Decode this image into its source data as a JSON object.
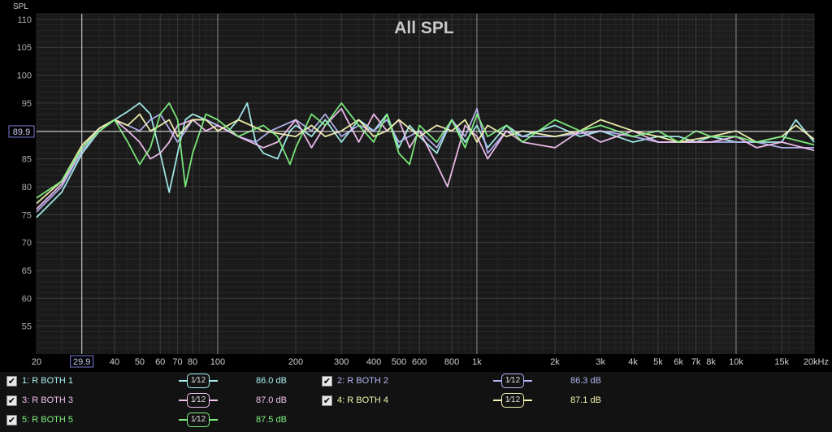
{
  "chart_data": {
    "type": "line",
    "title": "All SPL",
    "ylabel": "SPL",
    "xlabel": "",
    "x_scale": "log",
    "xlim": [
      20,
      20000
    ],
    "ylim": [
      50,
      111
    ],
    "y_ticks": [
      "110",
      "105",
      "100",
      "95",
      "90",
      "85",
      "80",
      "75",
      "70",
      "65",
      "60",
      "55"
    ],
    "x_ticks": [
      "20",
      "40",
      "50",
      "60",
      "70",
      "80",
      "100",
      "200",
      "300",
      "400",
      "500",
      "600",
      "800",
      "1k",
      "2k",
      "3k",
      "4k",
      "5k",
      "6k",
      "7k",
      "8k",
      "10k",
      "15k",
      "20kHz"
    ],
    "cursor": {
      "x_label": "29.9",
      "x": 29.9,
      "y_label": "89.9",
      "y": 89.9
    },
    "grid": true,
    "series": [
      {
        "name": "R BOTH 1",
        "color": "#a8f0f0",
        "points": [
          [
            20,
            74.5
          ],
          [
            25,
            79
          ],
          [
            30,
            86
          ],
          [
            35,
            90
          ],
          [
            40,
            92
          ],
          [
            45,
            93.5
          ],
          [
            50,
            95
          ],
          [
            55,
            93
          ],
          [
            60,
            86
          ],
          [
            65,
            79
          ],
          [
            70,
            86
          ],
          [
            75,
            92
          ],
          [
            80,
            93
          ],
          [
            90,
            92
          ],
          [
            100,
            91
          ],
          [
            110,
            90
          ],
          [
            120,
            92
          ],
          [
            130,
            95
          ],
          [
            140,
            88
          ],
          [
            150,
            86
          ],
          [
            170,
            85
          ],
          [
            190,
            90
          ],
          [
            200,
            91
          ],
          [
            230,
            89
          ],
          [
            260,
            92
          ],
          [
            300,
            88
          ],
          [
            350,
            92
          ],
          [
            400,
            90
          ],
          [
            450,
            93
          ],
          [
            500,
            87
          ],
          [
            550,
            91
          ],
          [
            600,
            89
          ],
          [
            700,
            86
          ],
          [
            800,
            92
          ],
          [
            900,
            88
          ],
          [
            1000,
            91
          ],
          [
            1100,
            87
          ],
          [
            1300,
            91
          ],
          [
            1500,
            89
          ],
          [
            2000,
            91
          ],
          [
            2500,
            89
          ],
          [
            3000,
            90
          ],
          [
            4000,
            88
          ],
          [
            5000,
            89
          ],
          [
            6000,
            89
          ],
          [
            7000,
            88
          ],
          [
            8000,
            89
          ],
          [
            10000,
            88
          ],
          [
            12000,
            88
          ],
          [
            15000,
            88
          ],
          [
            17000,
            92
          ],
          [
            20000,
            88
          ]
        ]
      },
      {
        "name": "R BOTH 2",
        "color": "#b4b4f4",
        "points": [
          [
            20,
            75.5
          ],
          [
            25,
            80
          ],
          [
            30,
            86.5
          ],
          [
            35,
            90
          ],
          [
            40,
            92
          ],
          [
            45,
            91
          ],
          [
            50,
            90
          ],
          [
            55,
            92
          ],
          [
            60,
            93
          ],
          [
            70,
            88
          ],
          [
            75,
            90
          ],
          [
            80,
            92
          ],
          [
            90,
            92
          ],
          [
            100,
            91
          ],
          [
            120,
            89
          ],
          [
            140,
            88
          ],
          [
            160,
            90
          ],
          [
            200,
            92
          ],
          [
            230,
            90
          ],
          [
            260,
            93
          ],
          [
            300,
            89
          ],
          [
            350,
            91
          ],
          [
            400,
            90
          ],
          [
            450,
            92
          ],
          [
            500,
            88
          ],
          [
            600,
            90
          ],
          [
            700,
            87
          ],
          [
            800,
            92
          ],
          [
            900,
            89
          ],
          [
            1000,
            94
          ],
          [
            1100,
            86
          ],
          [
            1300,
            90
          ],
          [
            1500,
            89
          ],
          [
            2000,
            89
          ],
          [
            3000,
            90
          ],
          [
            4000,
            89
          ],
          [
            5000,
            88
          ],
          [
            6000,
            88
          ],
          [
            8000,
            88
          ],
          [
            10000,
            88
          ],
          [
            12000,
            88
          ],
          [
            15000,
            87
          ],
          [
            20000,
            87
          ]
        ]
      },
      {
        "name": "R BOTH 3",
        "color": "#f4c0f0",
        "points": [
          [
            20,
            76
          ],
          [
            25,
            80.5
          ],
          [
            30,
            87
          ],
          [
            35,
            90.5
          ],
          [
            40,
            92
          ],
          [
            45,
            90
          ],
          [
            50,
            88
          ],
          [
            55,
            85
          ],
          [
            60,
            86
          ],
          [
            65,
            88
          ],
          [
            70,
            91
          ],
          [
            80,
            92
          ],
          [
            90,
            90
          ],
          [
            100,
            91
          ],
          [
            120,
            89
          ],
          [
            150,
            87
          ],
          [
            170,
            88
          ],
          [
            200,
            92
          ],
          [
            230,
            87
          ],
          [
            260,
            91
          ],
          [
            300,
            94
          ],
          [
            350,
            88
          ],
          [
            400,
            93
          ],
          [
            450,
            90
          ],
          [
            500,
            92
          ],
          [
            550,
            87
          ],
          [
            600,
            90
          ],
          [
            700,
            84
          ],
          [
            770,
            80
          ],
          [
            850,
            87
          ],
          [
            900,
            91
          ],
          [
            1000,
            89
          ],
          [
            1100,
            85
          ],
          [
            1300,
            90
          ],
          [
            1500,
            88
          ],
          [
            2000,
            87
          ],
          [
            2500,
            90
          ],
          [
            3000,
            88
          ],
          [
            4000,
            90
          ],
          [
            5000,
            88
          ],
          [
            6000,
            88
          ],
          [
            8000,
            88
          ],
          [
            10000,
            89
          ],
          [
            12000,
            87
          ],
          [
            15000,
            88
          ],
          [
            20000,
            86.5
          ]
        ]
      },
      {
        "name": "R BOTH 4",
        "color": "#f4f4b0",
        "points": [
          [
            20,
            77
          ],
          [
            25,
            81
          ],
          [
            30,
            87.5
          ],
          [
            35,
            90.5
          ],
          [
            40,
            92
          ],
          [
            45,
            91
          ],
          [
            50,
            93
          ],
          [
            55,
            90
          ],
          [
            60,
            91
          ],
          [
            65,
            92
          ],
          [
            70,
            89
          ],
          [
            80,
            92
          ],
          [
            90,
            92
          ],
          [
            100,
            90
          ],
          [
            120,
            92
          ],
          [
            150,
            90
          ],
          [
            200,
            89
          ],
          [
            230,
            91
          ],
          [
            260,
            89
          ],
          [
            300,
            90
          ],
          [
            350,
            92
          ],
          [
            400,
            89
          ],
          [
            450,
            90
          ],
          [
            500,
            92
          ],
          [
            600,
            89
          ],
          [
            700,
            91
          ],
          [
            800,
            90
          ],
          [
            900,
            92
          ],
          [
            1000,
            88
          ],
          [
            1100,
            91
          ],
          [
            1300,
            89
          ],
          [
            1500,
            90
          ],
          [
            2000,
            89
          ],
          [
            2500,
            90
          ],
          [
            3000,
            92
          ],
          [
            4000,
            90
          ],
          [
            5000,
            89
          ],
          [
            6000,
            88
          ],
          [
            8000,
            89
          ],
          [
            10000,
            90
          ],
          [
            12000,
            88
          ],
          [
            15000,
            89
          ],
          [
            17000,
            91
          ],
          [
            20000,
            88.5
          ]
        ]
      },
      {
        "name": "R BOTH 5",
        "color": "#7ef07e",
        "points": [
          [
            20,
            78
          ],
          [
            25,
            81
          ],
          [
            30,
            87
          ],
          [
            35,
            90
          ],
          [
            40,
            92
          ],
          [
            45,
            88
          ],
          [
            50,
            84
          ],
          [
            55,
            87
          ],
          [
            60,
            93
          ],
          [
            65,
            95
          ],
          [
            70,
            92
          ],
          [
            75,
            80
          ],
          [
            80,
            86
          ],
          [
            90,
            93
          ],
          [
            100,
            92
          ],
          [
            120,
            89
          ],
          [
            150,
            91
          ],
          [
            170,
            89
          ],
          [
            190,
            84
          ],
          [
            200,
            87
          ],
          [
            230,
            93
          ],
          [
            260,
            91
          ],
          [
            300,
            95
          ],
          [
            350,
            91
          ],
          [
            400,
            88
          ],
          [
            450,
            93
          ],
          [
            500,
            86
          ],
          [
            550,
            84
          ],
          [
            600,
            91
          ],
          [
            700,
            88
          ],
          [
            800,
            92
          ],
          [
            900,
            87
          ],
          [
            1000,
            93
          ],
          [
            1100,
            89
          ],
          [
            1300,
            91
          ],
          [
            1500,
            88
          ],
          [
            2000,
            92
          ],
          [
            2500,
            90
          ],
          [
            3000,
            91
          ],
          [
            4000,
            89
          ],
          [
            5000,
            90
          ],
          [
            6000,
            88
          ],
          [
            7000,
            90
          ],
          [
            8000,
            89
          ],
          [
            10000,
            89
          ],
          [
            12000,
            88
          ],
          [
            15000,
            89
          ],
          [
            20000,
            87.5
          ]
        ]
      }
    ]
  },
  "legend": [
    {
      "index": "1:",
      "name": "R BOTH 1",
      "smoothing": "1⁄12",
      "level": "86.0 dB",
      "checked": true
    },
    {
      "index": "2:",
      "name": "R BOTH 2",
      "smoothing": "1⁄12",
      "level": "86.3 dB",
      "checked": true
    },
    {
      "index": "3:",
      "name": "R BOTH 3",
      "smoothing": "1⁄12",
      "level": "87.0 dB",
      "checked": true
    },
    {
      "index": "4:",
      "name": "R BOTH 4",
      "smoothing": "1⁄12",
      "level": "87.1 dB",
      "checked": true
    },
    {
      "index": "5:",
      "name": "R BOTH 5",
      "smoothing": "1⁄12",
      "level": "87.5 dB",
      "checked": true
    }
  ],
  "legend_colors": [
    "#a8f0f0",
    "#b4b4f4",
    "#f4c0f0",
    "#f4f4b0",
    "#7ef07e"
  ],
  "checkmark": "✔"
}
